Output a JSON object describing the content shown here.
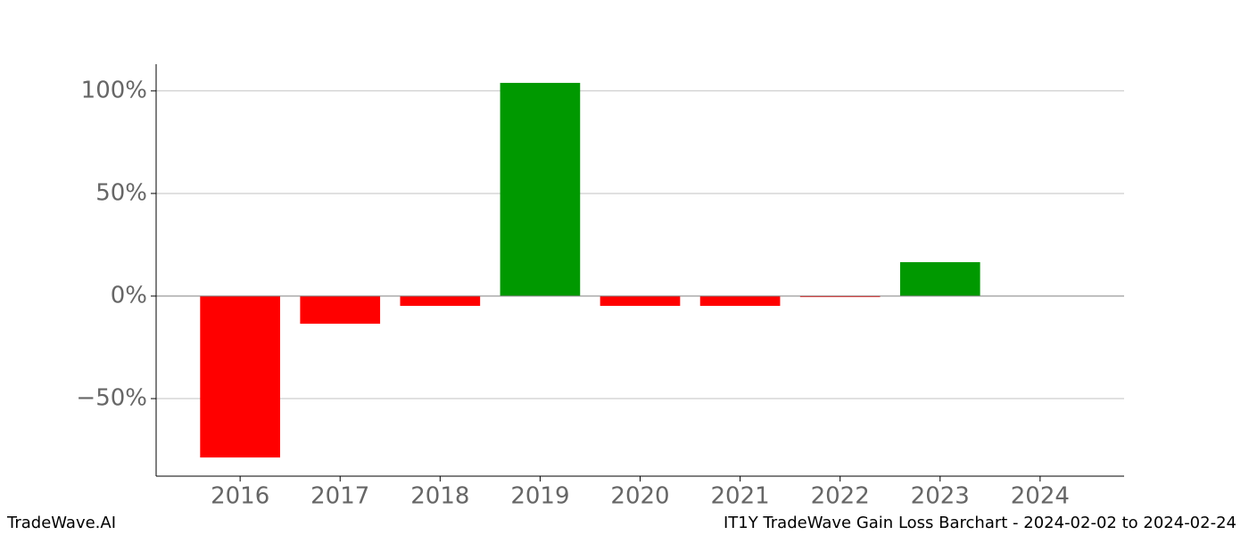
{
  "chart_data": {
    "type": "bar",
    "categories": [
      "2016",
      "2017",
      "2018",
      "2019",
      "2020",
      "2021",
      "2022",
      "2023",
      "2024"
    ],
    "values": [
      -78.7,
      -13.5,
      -4.8,
      103.9,
      -4.8,
      -4.8,
      -0.5,
      16.5,
      0
    ],
    "positive_color": "#009900",
    "negative_color": "#ff0000",
    "ylim": [
      -87.8,
      113
    ],
    "yticks": [
      {
        "value": -50,
        "label": "−50%"
      },
      {
        "value": 0,
        "label": "0%"
      },
      {
        "value": 50,
        "label": "50%"
      },
      {
        "value": 100,
        "label": "100%"
      }
    ],
    "grid": true
  },
  "footer": {
    "left": "TradeWave.AI",
    "right": "IT1Y TradeWave Gain Loss Barchart - 2024-02-02 to 2024-02-24"
  }
}
